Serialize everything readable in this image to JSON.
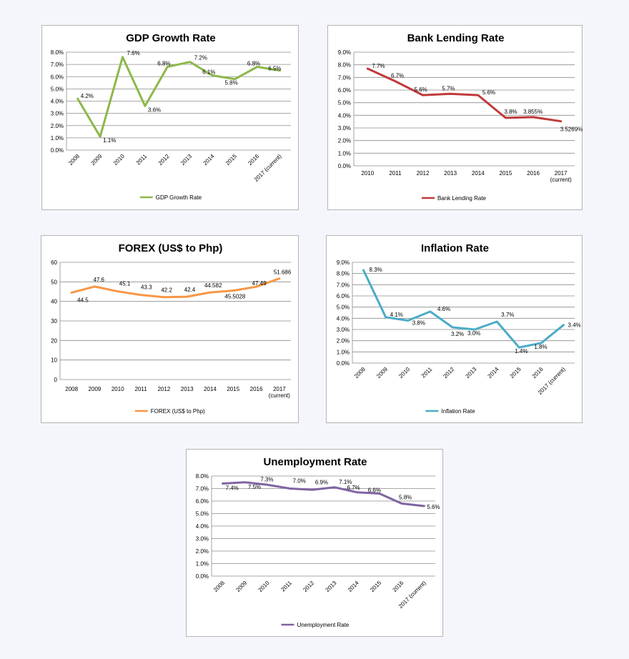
{
  "chart_data": [
    {
      "type": "line",
      "title": "GDP Growth Rate",
      "categories": [
        "2008",
        "2009",
        "2010",
        "2011",
        "2012",
        "2013",
        "2014",
        "2015",
        "2016",
        "2017 (current)"
      ],
      "series": [
        {
          "name": "GDP Growth Rate",
          "values": [
            4.2,
            1.1,
            7.6,
            3.6,
            6.8,
            7.2,
            6.1,
            5.8,
            6.8,
            6.5
          ]
        }
      ],
      "data_labels": [
        "4.2%",
        "1.1%",
        "7.6%",
        "3.6%",
        "6.8%",
        "7.2%",
        "6.1%",
        "5.8%",
        "6.8%",
        "6.5%"
      ],
      "y_ticks": [
        "0.0%",
        "1.0%",
        "2.0%",
        "3.0%",
        "4.0%",
        "5.0%",
        "6.0%",
        "7.0%",
        "8.0%"
      ],
      "ylim": [
        0,
        8
      ],
      "rotated_x_labels": true,
      "color": "#8db84a",
      "grid": true,
      "legend": "bottom"
    },
    {
      "type": "line",
      "title": "Bank Lending Rate",
      "categories": [
        "2010",
        "2011",
        "2012",
        "2013",
        "2014",
        "2015",
        "2016",
        "2017 (current)"
      ],
      "series": [
        {
          "name": "Bank Lending Rate",
          "values": [
            7.7,
            6.7,
            5.6,
            5.7,
            5.6,
            3.8,
            3.855,
            3.5269
          ]
        }
      ],
      "data_labels": [
        "7.7%",
        "6.7%",
        "5.6%",
        "5.7%",
        "5.6%",
        "3.8%",
        "3.855%",
        "3.5269%"
      ],
      "y_ticks": [
        "0.0%",
        "1.0%",
        "2.0%",
        "3.0%",
        "4.0%",
        "5.0%",
        "6.0%",
        "7.0%",
        "8.0%",
        "9.0%"
      ],
      "ylim": [
        0,
        9
      ],
      "rotated_x_labels": false,
      "color": "#c0393a",
      "grid": true,
      "legend": "bottom"
    },
    {
      "type": "line",
      "title": "FOREX (US$ to Php)",
      "categories": [
        "2008",
        "2009",
        "2010",
        "2011",
        "2012",
        "2013",
        "2014",
        "2015",
        "2016",
        "2017 (current)"
      ],
      "series": [
        {
          "name": "FOREX (US$ to Php)",
          "values": [
            44.5,
            47.6,
            45.1,
            43.3,
            42.2,
            42.4,
            44.582,
            45.5028,
            47.49,
            51.686
          ]
        }
      ],
      "data_labels": [
        "44.5",
        "47.6",
        "45.1",
        "43.3",
        "42.2",
        "42.4",
        "44.582",
        "45.5028",
        "47.49",
        "51.686"
      ],
      "y_ticks": [
        "0",
        "10",
        "20",
        "30",
        "40",
        "50",
        "60"
      ],
      "ylim": [
        0,
        60
      ],
      "rotated_x_labels": false,
      "color": "#f79646",
      "grid": true,
      "legend": "bottom"
    },
    {
      "type": "line",
      "title": "Inflation Rate",
      "categories": [
        "2008",
        "2009",
        "2010",
        "2011",
        "2012",
        "2013",
        "2014",
        "2015",
        "2016",
        "2017 (current)"
      ],
      "series": [
        {
          "name": "Inflation Rate",
          "values": [
            8.3,
            4.1,
            3.8,
            4.6,
            3.2,
            3.0,
            3.7,
            1.4,
            1.8,
            3.4
          ]
        }
      ],
      "data_labels": [
        "8.3%",
        "4.1%",
        "3.8%",
        "4.6%",
        "3.2%",
        "3.0%",
        "3.7%",
        "1.4%",
        "1.8%",
        "3.4%"
      ],
      "y_ticks": [
        "0.0%",
        "1.0%",
        "2.0%",
        "3.0%",
        "4.0%",
        "5.0%",
        "6.0%",
        "7.0%",
        "8.0%",
        "9.0%"
      ],
      "ylim": [
        0,
        9
      ],
      "rotated_x_labels": true,
      "color": "#4bacc6",
      "grid": true,
      "legend": "bottom"
    },
    {
      "type": "line",
      "title": "Unemployment Rate",
      "categories": [
        "2008",
        "2009",
        "2010",
        "2011",
        "2012",
        "2013",
        "2014",
        "2015",
        "2016",
        "2017 (current)"
      ],
      "series": [
        {
          "name": "Unemployment Rate",
          "values": [
            7.4,
            7.5,
            7.3,
            7.0,
            6.9,
            7.1,
            6.7,
            6.6,
            5.8,
            5.6
          ]
        }
      ],
      "data_labels": [
        "7.4%",
        "7.5%",
        "7.3%",
        "7.0%",
        "6.9%",
        "7.1%",
        "6.7%",
        "6.6%",
        "5.8%",
        "5.6%"
      ],
      "y_ticks": [
        "0.0%",
        "1.0%",
        "2.0%",
        "3.0%",
        "4.0%",
        "5.0%",
        "6.0%",
        "7.0%",
        "8.0%"
      ],
      "ylim": [
        0,
        8
      ],
      "rotated_x_labels": true,
      "color": "#8064a2",
      "grid": true,
      "legend": "bottom"
    }
  ]
}
